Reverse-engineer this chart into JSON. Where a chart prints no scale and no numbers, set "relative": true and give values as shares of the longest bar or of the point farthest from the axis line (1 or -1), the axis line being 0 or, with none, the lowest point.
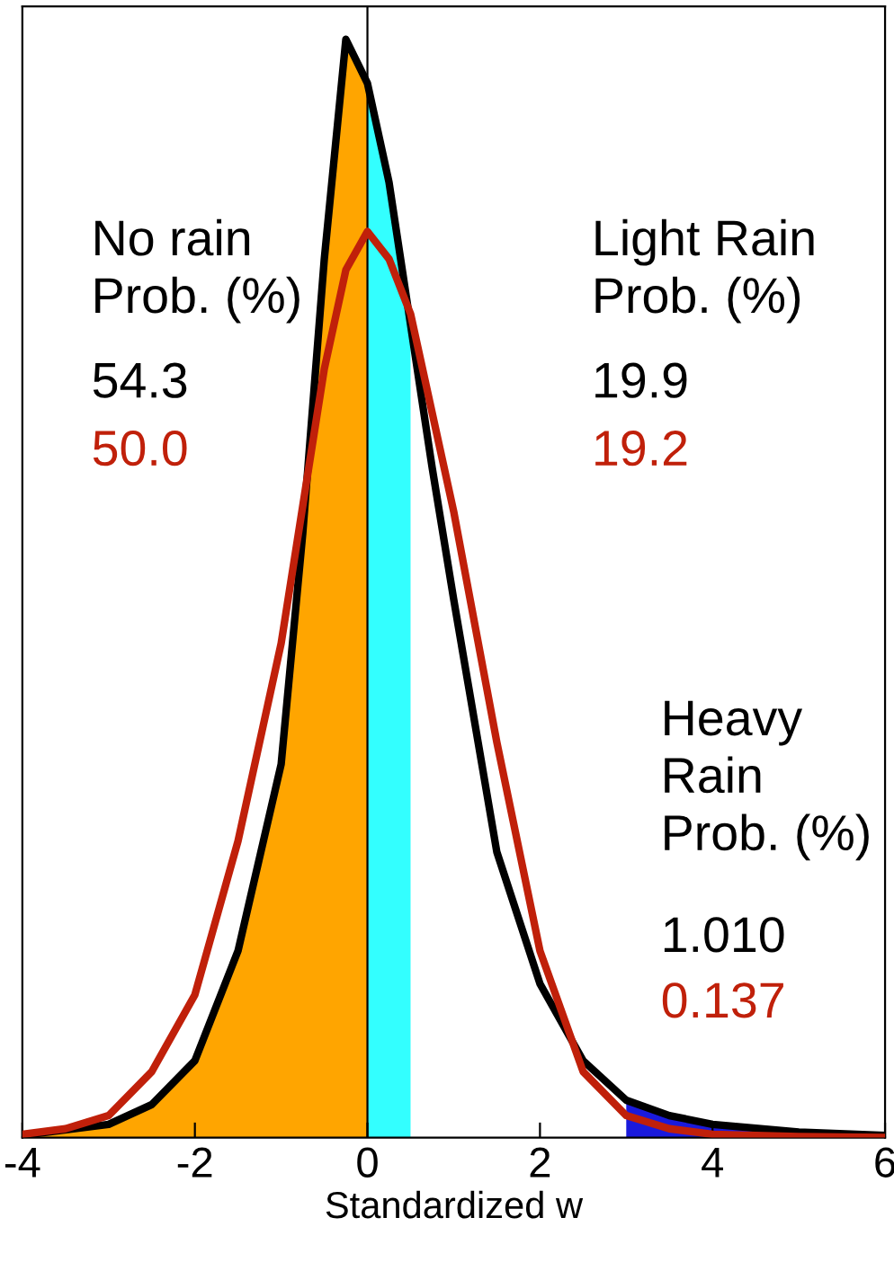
{
  "chart_data": {
    "type": "line",
    "relative": true,
    "xlabel": "Standardized w",
    "xlim": [
      -4,
      6
    ],
    "xticks": [
      -4,
      -2,
      0,
      2,
      4,
      6
    ],
    "tick_labels": "x",
    "grid": false,
    "legend": false,
    "marker": "none",
    "line_style": "solid",
    "series": [
      {
        "type": "area",
        "color": "#ffa500",
        "x": [
          -4,
          -3,
          -2.5,
          -2,
          -1.5,
          -1,
          -0.75,
          -0.5,
          -0.25,
          0
        ],
        "values": [
          0.002,
          0.012,
          0.03,
          0.07,
          0.17,
          0.34,
          0.55,
          0.8,
          1,
          0.96
        ]
      },
      {
        "type": "area",
        "color": "#33ffff",
        "x": [
          0,
          0.25,
          0.5
        ],
        "values": [
          0.96,
          0.87,
          0.74
        ]
      },
      {
        "type": "area",
        "color": "#1a1adc",
        "x": [
          3,
          3.5,
          4,
          5,
          6
        ],
        "values": [
          0.034,
          0.02,
          0.012,
          0.005,
          0.002
        ]
      },
      {
        "color": "#000000",
        "x": [
          -4,
          -3,
          -2.5,
          -2,
          -1.5,
          -1,
          -0.75,
          -0.5,
          -0.25,
          0,
          0.25,
          0.5,
          0.75,
          1,
          1.5,
          2,
          2.5,
          3,
          3.5,
          4,
          5,
          6
        ],
        "values": [
          0.002,
          0.012,
          0.03,
          0.07,
          0.17,
          0.34,
          0.55,
          0.8,
          1,
          0.96,
          0.87,
          0.74,
          0.61,
          0.49,
          0.26,
          0.14,
          0.07,
          0.034,
          0.02,
          0.012,
          0.005,
          0.002
        ]
      },
      {
        "color": "#c0200a",
        "x": [
          -4,
          -3.5,
          -3,
          -2.5,
          -2,
          -1.5,
          -1,
          -0.5,
          -0.25,
          0,
          0.25,
          0.5,
          1,
          1.5,
          2,
          2.5,
          3,
          3.5,
          4,
          5,
          6
        ],
        "values": [
          0.003,
          0.008,
          0.02,
          0.06,
          0.13,
          0.27,
          0.45,
          0.7,
          0.79,
          0.825,
          0.8,
          0.75,
          0.57,
          0.36,
          0.17,
          0.06,
          0.02,
          0.008,
          0.003,
          0.001,
          0
        ]
      }
    ],
    "ref_lines": [
      {
        "axis": "x",
        "value": 0,
        "color": "#000000"
      }
    ],
    "annotations": [
      "No rain\nProb. (%)",
      "54.3",
      "50.0",
      "Light Rain\nProb. (%)",
      "19.9",
      "19.2",
      "Heavy\nRain\nProb. (%)",
      "1.010",
      "0.137"
    ]
  }
}
